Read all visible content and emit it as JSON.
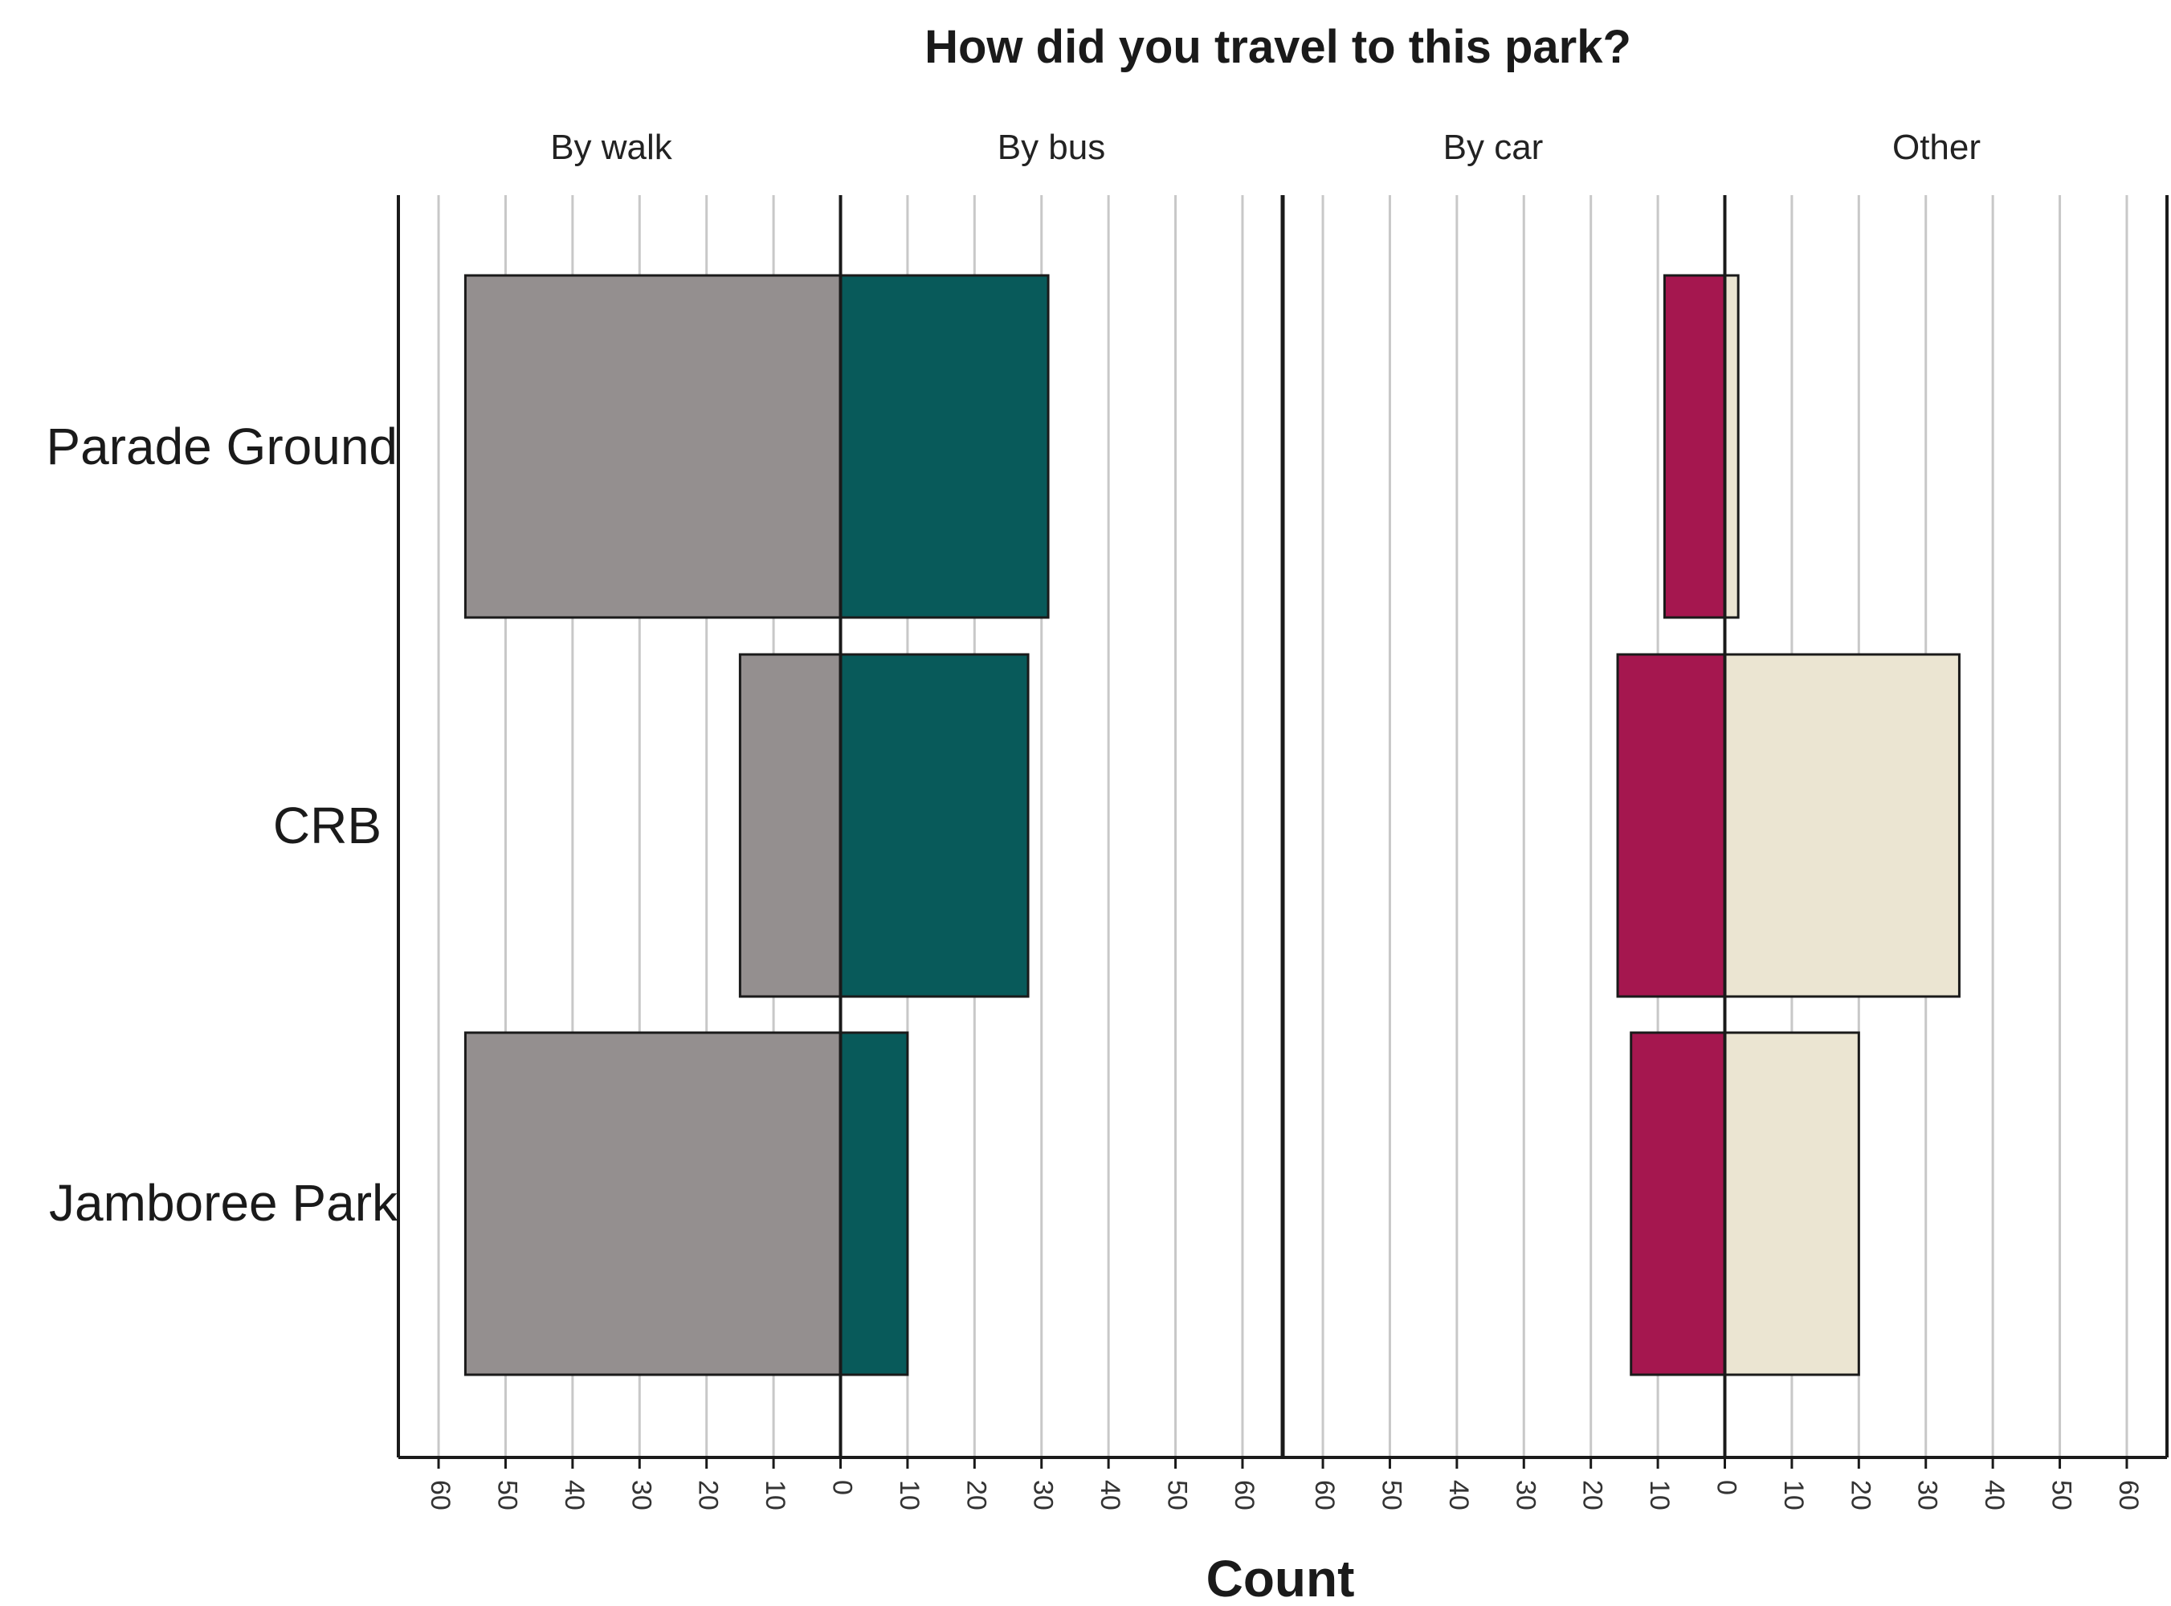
{
  "chart_data": {
    "type": "bar",
    "title": "How did you travel to this park?",
    "xlabel": "Count",
    "ylabel": "",
    "categories": [
      "Parade Ground",
      "CRB",
      "Jamboree Park"
    ],
    "panels": [
      {
        "name": "By walk",
        "series": [
          {
            "name": "By walk",
            "values": [
              56,
              15,
              56
            ],
            "color": "#948f8f"
          },
          {
            "name": "By bus",
            "values": [
              31,
              28,
              10
            ],
            "color": "#085a5a"
          }
        ]
      },
      {
        "name": "By car",
        "series": [
          {
            "name": "By car",
            "values": [
              9,
              16,
              14
            ],
            "color": "#a5174f"
          },
          {
            "name": "Other",
            "values": [
              2,
              35,
              20
            ],
            "color": "#ebe5d2"
          }
        ]
      }
    ],
    "panel_labels": [
      "By walk",
      "By bus",
      "By car",
      "Other"
    ],
    "xlim": [
      -66,
      66
    ],
    "ticks": [
      "60",
      "50",
      "40",
      "30",
      "20",
      "10",
      "0",
      "10",
      "20",
      "30",
      "40",
      "50",
      "60"
    ],
    "tick_values": [
      -60,
      -50,
      -40,
      -30,
      -20,
      -10,
      0,
      10,
      20,
      30,
      40,
      50,
      60
    ],
    "grid": true,
    "legend": "none"
  }
}
